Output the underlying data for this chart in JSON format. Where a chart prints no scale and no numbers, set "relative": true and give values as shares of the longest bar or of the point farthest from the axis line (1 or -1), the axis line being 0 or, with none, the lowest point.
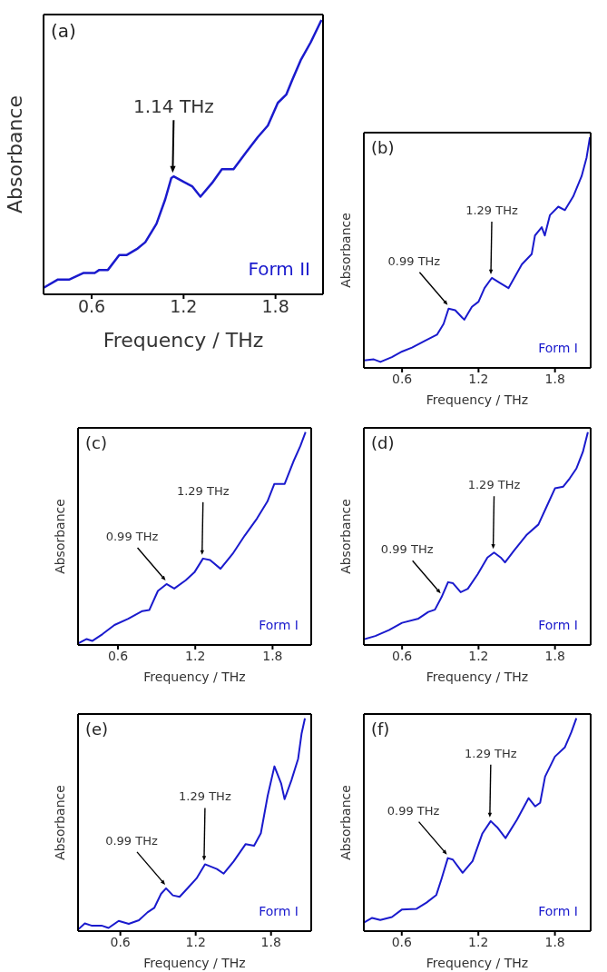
{
  "chart_data": [
    {
      "type": "line",
      "xlabel": "Frequency / THz",
      "ylabel": "Absorbance",
      "relative": true,
      "color": "#1a1acd",
      "xlim": [
        0.286,
        2.11
      ],
      "xticks": [
        0.6,
        1.2,
        1.8
      ],
      "x": [
        0.287,
        0.38,
        0.455,
        0.548,
        0.62,
        0.65,
        0.706,
        0.78,
        0.827,
        0.9,
        0.95,
        1.023,
        1.08,
        1.12,
        1.135,
        1.2,
        1.256,
        1.31,
        1.386,
        1.45,
        1.526,
        1.61,
        1.684,
        1.75,
        1.815,
        1.87,
        1.908,
        1.964,
        2.03,
        2.1
      ],
      "values": [
        0.024,
        0.054,
        0.054,
        0.078,
        0.078,
        0.089,
        0.089,
        0.143,
        0.143,
        0.167,
        0.19,
        0.257,
        0.346,
        0.424,
        0.43,
        0.41,
        0.394,
        0.356,
        0.406,
        0.456,
        0.456,
        0.519,
        0.573,
        0.615,
        0.698,
        0.728,
        0.78,
        0.853,
        0.919,
        1.0
      ],
      "annotations": [
        "(a)",
        "Form II",
        {
          "text": "1.14 THz",
          "x": 1.135,
          "y": 0.43
        }
      ]
    },
    {
      "type": "line",
      "xlabel": "Frequency / THz",
      "ylabel": "Absorbance",
      "relative": true,
      "color": "#1a1acd",
      "xlim": [
        0.3,
        2.08
      ],
      "xticks": [
        0.6,
        1.2,
        1.8
      ],
      "x": [
        0.3,
        0.378,
        0.43,
        0.52,
        0.6,
        0.678,
        0.78,
        0.874,
        0.926,
        0.965,
        1.017,
        1.088,
        1.148,
        1.2,
        1.247,
        1.304,
        1.37,
        1.435,
        1.54,
        1.617,
        1.643,
        1.696,
        1.72,
        1.76,
        1.826,
        1.878,
        1.943,
        2.009,
        2.048,
        2.074
      ],
      "values": [
        0.032,
        0.037,
        0.026,
        0.047,
        0.071,
        0.088,
        0.118,
        0.144,
        0.191,
        0.257,
        0.25,
        0.209,
        0.265,
        0.287,
        0.346,
        0.39,
        0.368,
        0.346,
        0.449,
        0.493,
        0.574,
        0.61,
        0.574,
        0.662,
        0.699,
        0.684,
        0.743,
        0.831,
        0.912,
        1.0
      ],
      "annotations": [
        "(b)",
        "Form I",
        {
          "text": "0.99 THz",
          "x": 0.965,
          "y": 0.257
        },
        {
          "text": "1.29 THz",
          "x": 1.304,
          "y": 0.39
        }
      ]
    },
    {
      "type": "line",
      "xlabel": "Frequency / THz",
      "ylabel": "Absorbance",
      "relative": true,
      "color": "#1a1acd",
      "xlim": [
        0.29,
        2.1
      ],
      "xticks": [
        0.6,
        1.2,
        1.8
      ],
      "x": [
        0.29,
        0.357,
        0.4,
        0.48,
        0.573,
        0.68,
        0.789,
        0.843,
        0.91,
        0.977,
        1.037,
        1.126,
        1.193,
        1.26,
        1.315,
        1.396,
        1.49,
        1.584,
        1.679,
        1.76,
        1.814,
        1.894,
        1.962,
        2.016,
        2.056
      ],
      "values": [
        0.007,
        0.028,
        0.019,
        0.051,
        0.094,
        0.123,
        0.159,
        0.164,
        0.254,
        0.286,
        0.265,
        0.304,
        0.341,
        0.406,
        0.399,
        0.358,
        0.428,
        0.514,
        0.594,
        0.674,
        0.757,
        0.757,
        0.862,
        0.935,
        1.0
      ],
      "annotations": [
        "(c)",
        "Form I",
        {
          "text": "0.99 THz",
          "x": 0.977,
          "y": 0.286
        },
        {
          "text": "1.29 THz",
          "x": 1.26,
          "y": 0.406
        }
      ]
    },
    {
      "type": "line",
      "xlabel": "Frequency / THz",
      "ylabel": "Absorbance",
      "relative": true,
      "color": "#1a1acd",
      "xlim": [
        0.3,
        2.08
      ],
      "xticks": [
        0.6,
        1.2,
        1.8
      ],
      "x": [
        0.3,
        0.39,
        0.497,
        0.6,
        0.729,
        0.806,
        0.858,
        0.91,
        0.961,
        1.0,
        1.06,
        1.116,
        1.194,
        1.27,
        1.322,
        1.374,
        1.408,
        1.477,
        1.58,
        1.67,
        1.735,
        1.8,
        1.865,
        1.916,
        1.968,
        2.019,
        2.058
      ],
      "values": [
        0.026,
        0.042,
        0.07,
        0.104,
        0.124,
        0.155,
        0.166,
        0.225,
        0.295,
        0.29,
        0.248,
        0.264,
        0.333,
        0.411,
        0.434,
        0.411,
        0.388,
        0.442,
        0.519,
        0.566,
        0.651,
        0.736,
        0.744,
        0.783,
        0.829,
        0.907,
        1.0
      ],
      "annotations": [
        "(d)",
        "Form I",
        {
          "text": "0.99 THz",
          "x": 0.91,
          "y": 0.225
        },
        {
          "text": "1.29 THz",
          "x": 1.322,
          "y": 0.434
        }
      ]
    },
    {
      "type": "line",
      "xlabel": "Frequency / THz",
      "ylabel": "Absorbance",
      "relative": true,
      "color": "#1a1acd",
      "xlim": [
        0.263,
        2.12
      ],
      "xticks": [
        0.6,
        1.2,
        1.8
      ],
      "x": [
        0.263,
        0.317,
        0.37,
        0.45,
        0.506,
        0.587,
        0.667,
        0.748,
        0.816,
        0.87,
        0.924,
        0.964,
        1.018,
        1.072,
        1.139,
        1.207,
        1.274,
        1.369,
        1.423,
        1.503,
        1.598,
        1.665,
        1.719,
        1.773,
        1.827,
        1.881,
        1.908,
        1.962,
        2.016,
        2.043,
        2.07
      ],
      "values": [
        0.007,
        0.036,
        0.026,
        0.026,
        0.015,
        0.048,
        0.034,
        0.051,
        0.088,
        0.109,
        0.175,
        0.201,
        0.168,
        0.161,
        0.204,
        0.248,
        0.314,
        0.292,
        0.27,
        0.328,
        0.409,
        0.401,
        0.46,
        0.635,
        0.774,
        0.693,
        0.62,
        0.708,
        0.81,
        0.927,
        1.0
      ],
      "annotations": [
        "(e)",
        "Form I",
        {
          "text": "0.99 THz",
          "x": 0.964,
          "y": 0.201
        },
        {
          "text": "1.29 THz",
          "x": 1.274,
          "y": 0.314
        }
      ]
    },
    {
      "type": "line",
      "xlabel": "Frequency / THz",
      "ylabel": "Absorbance",
      "relative": true,
      "color": "#1a1acd",
      "xlim": [
        0.303,
        2.08
      ],
      "xticks": [
        0.6,
        1.2,
        1.8
      ],
      "x": [
        0.303,
        0.368,
        0.432,
        0.523,
        0.6,
        0.716,
        0.794,
        0.871,
        0.91,
        0.961,
        1.0,
        1.077,
        1.155,
        1.232,
        1.297,
        1.348,
        1.413,
        1.503,
        1.594,
        1.645,
        1.684,
        1.723,
        1.8,
        1.877,
        1.929,
        1.968
      ],
      "values": [
        0.04,
        0.062,
        0.052,
        0.066,
        0.101,
        0.105,
        0.134,
        0.17,
        0.242,
        0.343,
        0.336,
        0.274,
        0.329,
        0.459,
        0.517,
        0.488,
        0.437,
        0.524,
        0.625,
        0.586,
        0.603,
        0.726,
        0.82,
        0.863,
        0.935,
        1.0
      ],
      "annotations": [
        "(f)",
        "Form I",
        {
          "text": "0.99 THz",
          "x": 0.961,
          "y": 0.343
        },
        {
          "text": "1.29 THz",
          "x": 1.297,
          "y": 0.517
        }
      ]
    }
  ]
}
